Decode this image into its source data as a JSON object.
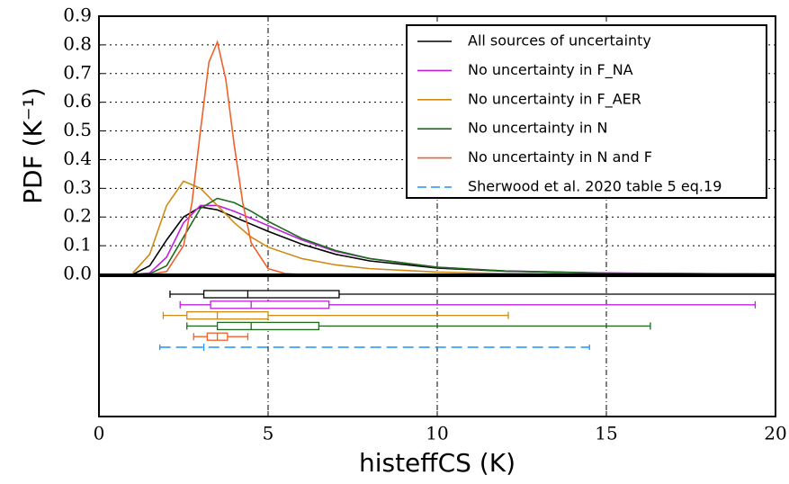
{
  "chart_data": {
    "type": "line",
    "xlabel": "histeffCS (K)",
    "ylabel": "PDF (K⁻¹)",
    "xlim": [
      0,
      20
    ],
    "xticks": [
      0,
      5,
      10,
      15,
      20
    ],
    "ylim": [
      0,
      0.9
    ],
    "yticks": [
      {
        "value": 0,
        "label": "0.0"
      },
      0.1,
      0.2,
      0.3,
      0.4,
      0.5,
      0.6,
      0.7,
      0.8,
      0.9
    ],
    "grid": true,
    "legend": "upper right",
    "series": [
      {
        "name": "All sources of uncertainty",
        "color": "#000000",
        "x": [
          1,
          1.5,
          2,
          2.5,
          3,
          3.5,
          4,
          4.5,
          5,
          6,
          7,
          8,
          10,
          12,
          15,
          20
        ],
        "values": [
          0,
          0.03,
          0.12,
          0.2,
          0.235,
          0.225,
          0.2,
          0.175,
          0.15,
          0.105,
          0.07,
          0.047,
          0.022,
          0.011,
          0.004,
          0.001
        ],
        "box": [
          2.1,
          3.1,
          4.4,
          7.1,
          20
        ]
      },
      {
        "name": "No uncertainty in F_NA",
        "color": "#bf1fdf",
        "x": [
          1,
          1.5,
          2,
          2.5,
          3,
          3.5,
          4,
          4.5,
          5,
          6,
          7,
          8,
          10,
          12,
          15,
          20
        ],
        "values": [
          0,
          0.005,
          0.06,
          0.18,
          0.24,
          0.24,
          0.22,
          0.195,
          0.17,
          0.12,
          0.08,
          0.055,
          0.025,
          0.012,
          0.005,
          0.001
        ],
        "box": [
          2.4,
          3.3,
          4.5,
          6.8,
          19.4
        ]
      },
      {
        "name": "No uncertainty in F_AER",
        "color": "#d08a14",
        "x": [
          1,
          1.5,
          2,
          2.5,
          3,
          3.5,
          4,
          4.5,
          5,
          6,
          7,
          8,
          10,
          12,
          15,
          20
        ],
        "values": [
          0.005,
          0.07,
          0.24,
          0.325,
          0.3,
          0.24,
          0.18,
          0.13,
          0.095,
          0.055,
          0.033,
          0.02,
          0.008,
          0.003,
          0.001,
          0
        ],
        "box": [
          1.9,
          2.6,
          3.5,
          5.0,
          12.1
        ]
      },
      {
        "name": "No uncertainty in N",
        "color": "#1b6b1b",
        "x": [
          1,
          1.5,
          2,
          2.5,
          3,
          3.5,
          4,
          4.5,
          5,
          6,
          7,
          8,
          10,
          12,
          15,
          20
        ],
        "values": [
          0,
          0.002,
          0.03,
          0.13,
          0.23,
          0.265,
          0.25,
          0.22,
          0.185,
          0.125,
          0.083,
          0.055,
          0.025,
          0.012,
          0.004,
          0.001
        ],
        "box": [
          2.6,
          3.5,
          4.5,
          6.5,
          16.3
        ]
      },
      {
        "name": "No uncertainty in N and F",
        "color": "#f0602a",
        "x": [
          1.5,
          2,
          2.5,
          2.75,
          3,
          3.25,
          3.5,
          3.75,
          4,
          4.25,
          4.5,
          5,
          5.5,
          6
        ],
        "values": [
          0,
          0.01,
          0.1,
          0.25,
          0.5,
          0.74,
          0.81,
          0.68,
          0.45,
          0.25,
          0.11,
          0.02,
          0.003,
          0
        ],
        "box": [
          2.8,
          3.2,
          3.5,
          3.8,
          4.4
        ]
      },
      {
        "name": "Sherwood et al. 2020 table 5 eq.19",
        "color": "#1e90ff",
        "dashed": true,
        "range": [
          1.8,
          3.1,
          14.5
        ]
      }
    ]
  }
}
